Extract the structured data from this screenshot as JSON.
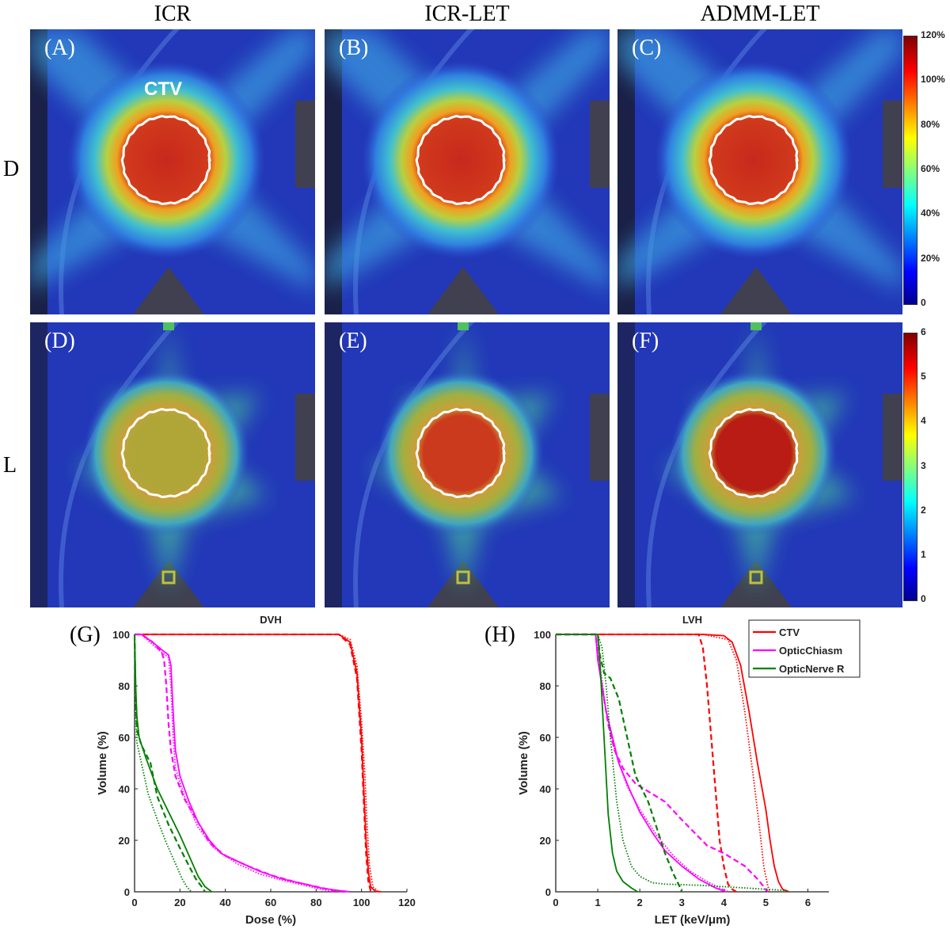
{
  "columns": [
    "ICR",
    "ICR-LET",
    "ADMM-LET"
  ],
  "rows": [
    "D",
    "L"
  ],
  "panels": [
    {
      "label": "(A)",
      "kind": "dose"
    },
    {
      "label": "(B)",
      "kind": "dose"
    },
    {
      "label": "(C)",
      "kind": "dose"
    },
    {
      "label": "(D)",
      "kind": "let",
      "core": "#b0a638"
    },
    {
      "label": "(E)",
      "kind": "let",
      "core": "#cc3a1e"
    },
    {
      "label": "(F)",
      "kind": "let",
      "core": "#b81c14"
    }
  ],
  "ctv_label": "CTV",
  "dose_colorbar": {
    "ticks": [
      "0",
      "20%",
      "40%",
      "60%",
      "80%",
      "100%",
      "120%"
    ],
    "colormap": "jet"
  },
  "let_colorbar": {
    "ticks": [
      "0",
      "1",
      "2",
      "3",
      "4",
      "5",
      "6"
    ],
    "colormap": "jet"
  },
  "colors": {
    "CTV": "#ff0000",
    "OpticChiasm": "#ff00ff",
    "OpticNerve R": "#008000"
  },
  "chart_data": [
    {
      "panel_label": "(G)",
      "type": "line",
      "title": "DVH",
      "xlabel": "Dose (%)",
      "ylabel": "Volume (%)",
      "xlim": [
        0,
        120
      ],
      "ylim": [
        0,
        100
      ],
      "xticks": [
        0,
        20,
        40,
        60,
        80,
        100,
        120
      ],
      "yticks": [
        0,
        20,
        40,
        60,
        80,
        100
      ],
      "grid": false,
      "series": [
        {
          "structure": "CTV",
          "style": "solid",
          "points": [
            [
              0,
              100
            ],
            [
              90,
              100
            ],
            [
              95,
              97
            ],
            [
              98,
              85
            ],
            [
              100,
              60
            ],
            [
              101,
              40
            ],
            [
              102,
              20
            ],
            [
              103,
              8
            ],
            [
              104,
              2
            ],
            [
              106,
              0.3
            ],
            [
              108,
              0
            ]
          ]
        },
        {
          "structure": "CTV",
          "style": "dashed",
          "points": [
            [
              0,
              100
            ],
            [
              90,
              100
            ],
            [
              95,
              96
            ],
            [
              98,
              83
            ],
            [
              100,
              55
            ],
            [
              101,
              35
            ],
            [
              102,
              15
            ],
            [
              103,
              4
            ],
            [
              104,
              0.5
            ],
            [
              105,
              0
            ]
          ]
        },
        {
          "structure": "CTV",
          "style": "dotted",
          "points": [
            [
              0,
              100
            ],
            [
              90,
              100
            ],
            [
              95,
              98
            ],
            [
              98,
              88
            ],
            [
              100,
              66
            ],
            [
              101.5,
              45
            ],
            [
              102.5,
              25
            ],
            [
              103.5,
              10
            ],
            [
              105,
              2
            ],
            [
              107,
              0.3
            ],
            [
              109,
              0
            ]
          ]
        },
        {
          "structure": "OpticChiasm",
          "style": "solid",
          "points": [
            [
              0,
              100
            ],
            [
              3,
              100
            ],
            [
              8,
              97
            ],
            [
              12,
              94
            ],
            [
              15,
              92
            ],
            [
              16,
              88
            ],
            [
              17,
              70
            ],
            [
              18,
              55
            ],
            [
              20,
              45
            ],
            [
              24,
              35
            ],
            [
              28,
              27
            ],
            [
              33,
              20
            ],
            [
              38,
              15
            ],
            [
              45,
              12
            ],
            [
              55,
              8
            ],
            [
              65,
              5
            ],
            [
              75,
              3
            ],
            [
              82,
              1.5
            ],
            [
              90,
              0.5
            ],
            [
              95,
              0
            ]
          ]
        },
        {
          "structure": "OpticChiasm",
          "style": "dashed",
          "points": [
            [
              0,
              100
            ],
            [
              3,
              100
            ],
            [
              8,
              97
            ],
            [
              12,
              93
            ],
            [
              13,
              90
            ],
            [
              14,
              80
            ],
            [
              15,
              65
            ],
            [
              16,
              55
            ],
            [
              18,
              45
            ],
            [
              22,
              36
            ],
            [
              28,
              27
            ],
            [
              33,
              19
            ],
            [
              40,
              14
            ],
            [
              50,
              10
            ],
            [
              60,
              6.5
            ],
            [
              70,
              4
            ],
            [
              80,
              2
            ],
            [
              88,
              0.5
            ],
            [
              92,
              0
            ]
          ]
        },
        {
          "structure": "OpticChiasm",
          "style": "dotted",
          "points": [
            [
              0,
              100
            ],
            [
              3,
              100
            ],
            [
              8,
              96
            ],
            [
              12,
              93
            ],
            [
              15,
              91
            ],
            [
              16,
              80
            ],
            [
              17,
              60
            ],
            [
              18,
              48
            ],
            [
              22,
              37
            ],
            [
              28,
              25
            ],
            [
              35,
              17
            ],
            [
              45,
              11
            ],
            [
              55,
              7
            ],
            [
              65,
              4.5
            ],
            [
              75,
              2.5
            ],
            [
              82,
              1
            ],
            [
              88,
              0
            ]
          ]
        },
        {
          "structure": "OpticNerve R",
          "style": "solid",
          "points": [
            [
              0,
              100
            ],
            [
              0.5,
              80
            ],
            [
              1,
              68
            ],
            [
              2,
              60
            ],
            [
              5,
              52
            ],
            [
              10,
              40
            ],
            [
              15,
              31
            ],
            [
              20,
              22
            ],
            [
              22,
              18
            ],
            [
              25,
              12
            ],
            [
              28,
              6
            ],
            [
              31,
              2
            ],
            [
              34,
              0
            ]
          ]
        },
        {
          "structure": "OpticNerve R",
          "style": "dashed",
          "points": [
            [
              0,
              100
            ],
            [
              0.5,
              75
            ],
            [
              1,
              63
            ],
            [
              3,
              57
            ],
            [
              7,
              50
            ],
            [
              10,
              37
            ],
            [
              15,
              26
            ],
            [
              20,
              17
            ],
            [
              24,
              10
            ],
            [
              27,
              5
            ],
            [
              30,
              1.5
            ],
            [
              31,
              0
            ]
          ]
        },
        {
          "structure": "OpticNerve R",
          "style": "dotted",
          "points": [
            [
              0,
              100
            ],
            [
              0.5,
              70
            ],
            [
              1,
              58
            ],
            [
              3,
              50
            ],
            [
              6,
              38
            ],
            [
              10,
              28
            ],
            [
              14,
              19
            ],
            [
              18,
              11
            ],
            [
              21,
              5
            ],
            [
              23,
              2
            ],
            [
              25,
              0
            ]
          ]
        }
      ]
    },
    {
      "panel_label": "(H)",
      "type": "line",
      "title": "LVH",
      "xlabel": "LET (keV/μm)",
      "ylabel": "Volume (%)",
      "xlim": [
        0,
        6.5
      ],
      "ylim": [
        0,
        100
      ],
      "xticks": [
        0,
        1,
        2,
        3,
        4,
        5,
        6
      ],
      "yticks": [
        0,
        20,
        40,
        60,
        80,
        100
      ],
      "grid": false,
      "legend": {
        "position": "top-right",
        "entries": [
          "CTV",
          "OpticChiasm",
          "OpticNerve R"
        ]
      },
      "series": [
        {
          "structure": "CTV",
          "style": "solid",
          "points": [
            [
              0,
              100
            ],
            [
              3.5,
              100
            ],
            [
              4.0,
              99.5
            ],
            [
              4.2,
              97
            ],
            [
              4.4,
              88
            ],
            [
              4.6,
              70
            ],
            [
              4.8,
              50
            ],
            [
              5.0,
              32
            ],
            [
              5.1,
              20
            ],
            [
              5.2,
              10
            ],
            [
              5.3,
              4
            ],
            [
              5.4,
              1
            ],
            [
              5.55,
              0
            ]
          ]
        },
        {
          "structure": "CTV",
          "style": "dashed",
          "points": [
            [
              0,
              100
            ],
            [
              3.4,
              100
            ],
            [
              3.5,
              95
            ],
            [
              3.6,
              80
            ],
            [
              3.7,
              60
            ],
            [
              3.8,
              40
            ],
            [
              3.9,
              20
            ],
            [
              4.0,
              10
            ],
            [
              4.1,
              3
            ],
            [
              4.2,
              1
            ],
            [
              4.3,
              0
            ]
          ]
        },
        {
          "structure": "CTV",
          "style": "dotted",
          "points": [
            [
              0,
              100
            ],
            [
              3.5,
              100
            ],
            [
              4.1,
              98
            ],
            [
              4.3,
              90
            ],
            [
              4.5,
              70
            ],
            [
              4.7,
              45
            ],
            [
              4.85,
              25
            ],
            [
              4.95,
              10
            ],
            [
              5.05,
              2
            ],
            [
              5.1,
              0
            ]
          ]
        },
        {
          "structure": "OpticChiasm",
          "style": "solid",
          "points": [
            [
              0,
              100
            ],
            [
              0.95,
              100
            ],
            [
              1,
              90
            ],
            [
              1.1,
              80
            ],
            [
              1.2,
              70
            ],
            [
              1.35,
              60
            ],
            [
              1.5,
              50
            ],
            [
              1.75,
              40
            ],
            [
              2.0,
              31
            ],
            [
              2.3,
              23
            ],
            [
              2.6,
              16
            ],
            [
              3.0,
              10
            ],
            [
              3.4,
              5
            ],
            [
              3.8,
              1.5
            ],
            [
              4.05,
              0
            ]
          ]
        },
        {
          "structure": "OpticChiasm",
          "style": "dashed",
          "points": [
            [
              0,
              100
            ],
            [
              0.95,
              100
            ],
            [
              1.0,
              92
            ],
            [
              1.1,
              80
            ],
            [
              1.25,
              65
            ],
            [
              1.4,
              55
            ],
            [
              1.6,
              48
            ],
            [
              1.9,
              42
            ],
            [
              2.2,
              39
            ],
            [
              2.6,
              35
            ],
            [
              3.0,
              28
            ],
            [
              3.6,
              18
            ],
            [
              4.0,
              15
            ],
            [
              4.5,
              10
            ],
            [
              4.8,
              5
            ],
            [
              5.0,
              1
            ],
            [
              5.05,
              0
            ]
          ]
        },
        {
          "structure": "OpticChiasm",
          "style": "dotted",
          "points": [
            [
              0,
              100
            ],
            [
              0.95,
              100
            ],
            [
              1.05,
              88
            ],
            [
              1.2,
              70
            ],
            [
              1.4,
              55
            ],
            [
              1.7,
              41
            ],
            [
              2.0,
              32
            ],
            [
              2.4,
              22
            ],
            [
              2.8,
              14
            ],
            [
              3.2,
              8
            ],
            [
              3.6,
              4
            ],
            [
              3.9,
              1.5
            ],
            [
              4.1,
              0
            ]
          ]
        },
        {
          "structure": "OpticNerve R",
          "style": "solid",
          "points": [
            [
              0,
              100
            ],
            [
              1.0,
              100
            ],
            [
              1.05,
              90
            ],
            [
              1.15,
              60
            ],
            [
              1.25,
              30
            ],
            [
              1.35,
              15
            ],
            [
              1.45,
              8
            ],
            [
              1.6,
              4
            ],
            [
              1.8,
              1.5
            ],
            [
              1.95,
              0
            ]
          ]
        },
        {
          "structure": "OpticNerve R",
          "style": "dashed",
          "points": [
            [
              0,
              100
            ],
            [
              1.0,
              100
            ],
            [
              1.05,
              92
            ],
            [
              1.15,
              85
            ],
            [
              1.3,
              83
            ],
            [
              1.5,
              75
            ],
            [
              1.7,
              60
            ],
            [
              1.9,
              45
            ],
            [
              2.2,
              35
            ],
            [
              2.4,
              25
            ],
            [
              2.6,
              15
            ],
            [
              2.8,
              7
            ],
            [
              2.95,
              2
            ],
            [
              3.0,
              0
            ]
          ]
        },
        {
          "structure": "OpticNerve R",
          "style": "dotted",
          "points": [
            [
              0,
              100
            ],
            [
              1.0,
              100
            ],
            [
              1.1,
              95
            ],
            [
              1.2,
              80
            ],
            [
              1.3,
              60
            ],
            [
              1.45,
              35
            ],
            [
              1.6,
              20
            ],
            [
              1.8,
              10
            ],
            [
              2.0,
              6
            ],
            [
              2.3,
              3.5
            ],
            [
              2.6,
              3
            ],
            [
              3.5,
              2.5
            ],
            [
              4.5,
              1.5
            ],
            [
              5.5,
              0.5
            ],
            [
              5.55,
              0
            ]
          ]
        }
      ]
    }
  ]
}
